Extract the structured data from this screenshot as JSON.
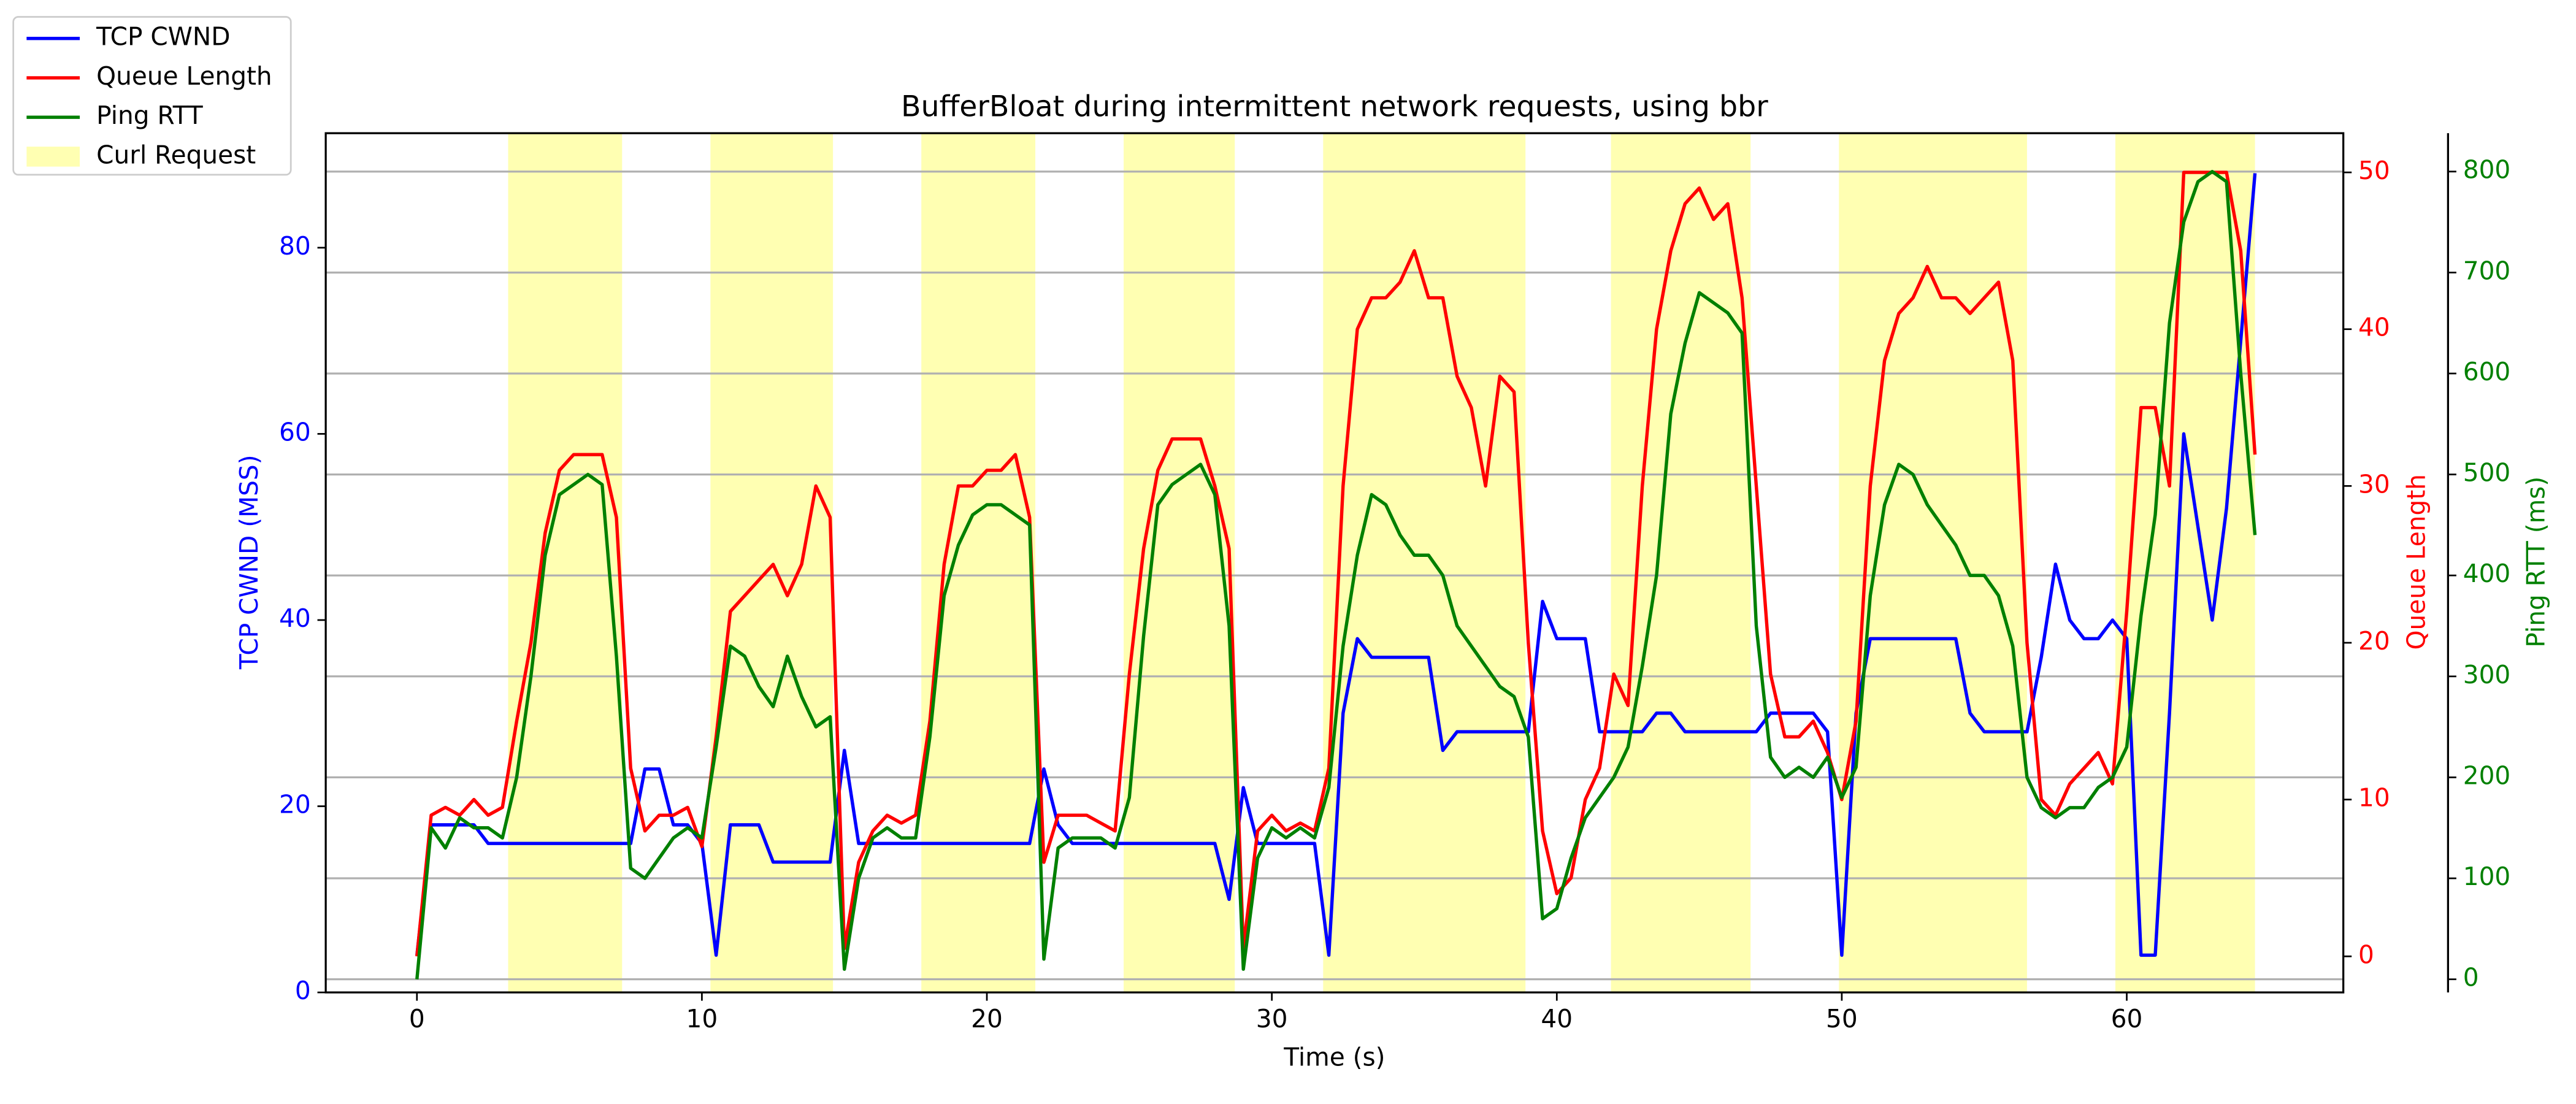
{
  "chart_data": {
    "type": "line",
    "title": "BufferBloat during intermittent network requests, using bbr",
    "xlabel": "Time (s)",
    "ylabel": "TCP CWND (MSS)",
    "y2label": "Queue Length",
    "y3label": "Ping RTT (ms)",
    "xlim": [
      -3.2,
      67.6
    ],
    "xticks": [
      0,
      10,
      20,
      30,
      40,
      50,
      60
    ],
    "ylim": [
      0,
      92.3
    ],
    "yticks": [
      0,
      20,
      40,
      60,
      80
    ],
    "y2lim": [
      -2.3,
      52.5
    ],
    "y2ticks": [
      0,
      10,
      20,
      30,
      40,
      50
    ],
    "y3lim": [
      -13,
      838
    ],
    "y3ticks": [
      0,
      100,
      200,
      300,
      400,
      500,
      600,
      700,
      800
    ],
    "grid": "y3",
    "legend": "outside upper left",
    "x": [
      0,
      0.5,
      1,
      1.5,
      2,
      2.5,
      3,
      3.5,
      4,
      4.5,
      5,
      5.5,
      6,
      6.5,
      7,
      7.5,
      8,
      8.5,
      9,
      9.5,
      10,
      10.5,
      11,
      11.5,
      12,
      12.5,
      13,
      13.5,
      14,
      14.5,
      15,
      15.5,
      16,
      16.5,
      17,
      17.5,
      18,
      18.5,
      19,
      19.5,
      20,
      20.5,
      21,
      21.5,
      22,
      22.5,
      23,
      23.5,
      24,
      24.5,
      25,
      25.5,
      26,
      26.5,
      27,
      27.5,
      28,
      28.5,
      29,
      29.5,
      30,
      30.5,
      31,
      31.5,
      32,
      32.5,
      33,
      33.5,
      34,
      34.5,
      35,
      35.5,
      36,
      36.5,
      37,
      37.5,
      38,
      38.5,
      39,
      39.5,
      40,
      40.5,
      41,
      41.5,
      42,
      42.5,
      43,
      43.5,
      44,
      44.5,
      45,
      45.5,
      46,
      46.5,
      47,
      47.5,
      48,
      48.5,
      49,
      49.5,
      50,
      50.5,
      51,
      51.5,
      52,
      52.5,
      53,
      53.5,
      54,
      54.5,
      55,
      55.5,
      56,
      56.5,
      57,
      57.5,
      58,
      58.5,
      59,
      59.5,
      60,
      60.5,
      61,
      61.5,
      62,
      62.5,
      63,
      63.5,
      64,
      64.5
    ],
    "series": [
      {
        "name": "TCP CWND",
        "color": "#0000ff",
        "axis": "y",
        "values": [
          4,
          18,
          18,
          18,
          18,
          16,
          16,
          16,
          16,
          16,
          16,
          16,
          16,
          16,
          16,
          16,
          24,
          24,
          18,
          18,
          16,
          4,
          18,
          18,
          18,
          14,
          14,
          14,
          14,
          14,
          26,
          16,
          16,
          16,
          16,
          16,
          16,
          16,
          16,
          16,
          16,
          16,
          16,
          16,
          24,
          18,
          16,
          16,
          16,
          16,
          16,
          16,
          16,
          16,
          16,
          16,
          16,
          10,
          22,
          16,
          16,
          16,
          16,
          16,
          4,
          30,
          38,
          36,
          36,
          36,
          36,
          36,
          26,
          28,
          28,
          28,
          28,
          28,
          28,
          42,
          38,
          38,
          38,
          28,
          28,
          28,
          28,
          30,
          30,
          28,
          28,
          28,
          28,
          28,
          28,
          30,
          30,
          30,
          30,
          28,
          4,
          30,
          38,
          38,
          38,
          38,
          38,
          38,
          38,
          30,
          28,
          28,
          28,
          28,
          36,
          46,
          40,
          38,
          38,
          40,
          38,
          4,
          4,
          30,
          60,
          50,
          40,
          52,
          70,
          88
        ]
      },
      {
        "name": "Queue Length",
        "color": "#ff0000",
        "axis": "y2",
        "values": [
          0,
          9,
          9.5,
          9,
          10,
          9,
          9.5,
          15,
          20,
          27,
          31,
          32,
          32,
          32,
          28,
          12,
          8,
          9,
          9,
          9.5,
          7,
          14,
          22,
          23,
          24,
          25,
          23,
          25,
          30,
          28,
          0.5,
          6,
          8,
          9,
          8.5,
          9,
          15,
          25,
          30,
          30,
          31,
          31,
          32,
          28,
          6,
          9,
          9,
          9,
          8.5,
          8,
          18,
          26,
          31,
          33,
          33,
          33,
          30,
          26,
          0.5,
          8,
          9,
          8,
          8.5,
          8,
          12,
          30,
          40,
          42,
          42,
          43,
          45,
          42,
          42,
          37,
          35,
          30,
          37,
          36,
          20,
          8,
          4,
          5,
          10,
          12,
          18,
          16,
          30,
          40,
          45,
          48,
          49,
          47,
          48,
          42,
          30,
          18,
          14,
          14,
          15,
          13,
          10,
          15,
          30,
          38,
          41,
          42,
          44,
          42,
          42,
          41,
          42,
          43,
          38,
          20,
          10,
          9,
          11,
          12,
          13,
          11,
          22,
          35,
          35,
          30,
          50,
          50,
          50,
          50,
          45,
          32
        ]
      },
      {
        "name": "Ping RTT",
        "color": "#008000",
        "axis": "y3",
        "values": [
          0,
          150,
          130,
          160,
          150,
          150,
          140,
          200,
          300,
          420,
          480,
          490,
          500,
          490,
          320,
          110,
          100,
          120,
          140,
          150,
          140,
          230,
          330,
          320,
          290,
          270,
          320,
          280,
          250,
          260,
          10,
          100,
          140,
          150,
          140,
          140,
          240,
          380,
          430,
          460,
          470,
          470,
          460,
          450,
          20,
          130,
          140,
          140,
          140,
          130,
          180,
          340,
          470,
          490,
          500,
          510,
          480,
          350,
          10,
          120,
          150,
          140,
          150,
          140,
          190,
          330,
          420,
          480,
          470,
          440,
          420,
          420,
          400,
          350,
          330,
          310,
          290,
          280,
          240,
          60,
          70,
          120,
          160,
          180,
          200,
          230,
          310,
          400,
          560,
          630,
          680,
          670,
          660,
          640,
          350,
          220,
          200,
          210,
          200,
          220,
          180,
          210,
          380,
          470,
          510,
          500,
          470,
          450,
          430,
          400,
          400,
          380,
          330,
          200,
          170,
          160,
          170,
          170,
          190,
          200,
          230,
          360,
          460,
          650,
          750,
          790,
          800,
          790,
          600,
          440
        ]
      }
    ],
    "spans": {
      "name": "Curl Request",
      "color": "#ffff00",
      "alpha": 0.3,
      "intervals": [
        [
          3.2,
          7.2
        ],
        [
          10.3,
          14.6
        ],
        [
          17.7,
          21.7
        ],
        [
          24.8,
          28.7
        ],
        [
          31.8,
          38.9
        ],
        [
          41.9,
          46.8
        ],
        [
          49.9,
          56.5
        ],
        [
          59.6,
          64.5
        ]
      ]
    }
  }
}
